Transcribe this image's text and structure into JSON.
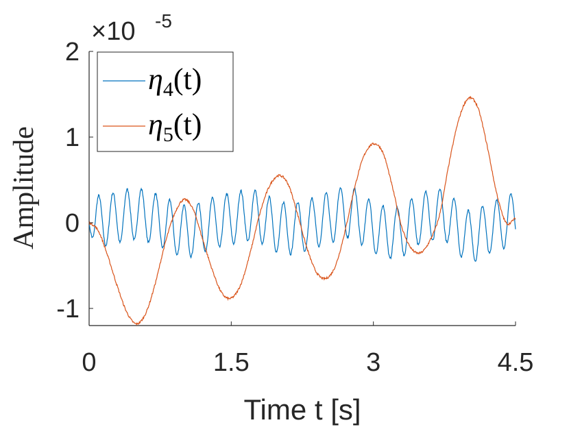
{
  "chart_data": {
    "type": "line",
    "xlabel": "Time t [s]",
    "ylabel": "Amplitude",
    "xlim": [
      0,
      4.5
    ],
    "ylim": [
      -1.2,
      2
    ],
    "y_exponent_label": "×10",
    "y_exponent_power": "-5",
    "x_ticks": [
      0,
      1.5,
      3,
      4.5
    ],
    "x_tick_labels": [
      "0",
      "1.5",
      "3",
      "4.5"
    ],
    "y_ticks": [
      -1,
      0,
      1,
      2
    ],
    "y_tick_labels": [
      "-1",
      "0",
      "1",
      "2"
    ],
    "grid": false,
    "legend_position": "top-left",
    "series": [
      {
        "name_base": "η",
        "name_sub": "4",
        "name_tail": "(t)",
        "color": "#0072BD",
        "description_free": true,
        "slow_component": {
          "x": [
            0,
            0.25,
            0.5,
            0.75,
            1,
            1.25,
            1.5,
            1.75,
            2,
            2.25,
            2.5,
            2.75,
            3,
            3.25,
            3.5,
            3.75,
            4,
            4.25,
            4.5
          ],
          "y": [
            0,
            0.05,
            0.1,
            0.02,
            -0.1,
            -0.03,
            0.05,
            0.08,
            -0.05,
            -0.05,
            0.05,
            0.12,
            -0.05,
            -0.12,
            0.05,
            0.08,
            -0.15,
            -0.05,
            0.05
          ]
        },
        "fast_amplitude": 0.3,
        "fast_period": 0.15
      },
      {
        "name_base": "η",
        "name_sub": "5",
        "name_tail": "(t)",
        "color": "#D95319",
        "x": [
          0,
          0.1,
          0.2,
          0.3,
          0.4,
          0.5,
          0.6,
          0.7,
          0.8,
          0.9,
          1.0,
          1.1,
          1.2,
          1.3,
          1.4,
          1.5,
          1.6,
          1.7,
          1.8,
          1.9,
          2.0,
          2.1,
          2.2,
          2.3,
          2.4,
          2.5,
          2.6,
          2.7,
          2.8,
          2.9,
          3.0,
          3.1,
          3.2,
          3.3,
          3.4,
          3.5,
          3.6,
          3.7,
          3.8,
          3.9,
          4.0,
          4.1,
          4.2,
          4.3,
          4.4,
          4.5
        ],
        "y": [
          0,
          -0.1,
          -0.4,
          -0.75,
          -1.05,
          -1.18,
          -1.05,
          -0.7,
          -0.25,
          0.1,
          0.27,
          0.15,
          -0.2,
          -0.55,
          -0.82,
          -0.88,
          -0.72,
          -0.35,
          0.1,
          0.42,
          0.55,
          0.45,
          0.1,
          -0.3,
          -0.58,
          -0.65,
          -0.5,
          -0.1,
          0.4,
          0.78,
          0.92,
          0.82,
          0.42,
          -0.05,
          -0.3,
          -0.35,
          -0.2,
          0.1,
          0.7,
          1.2,
          1.45,
          1.35,
          0.9,
          0.35,
          0.0,
          0.05
        ]
      }
    ]
  }
}
